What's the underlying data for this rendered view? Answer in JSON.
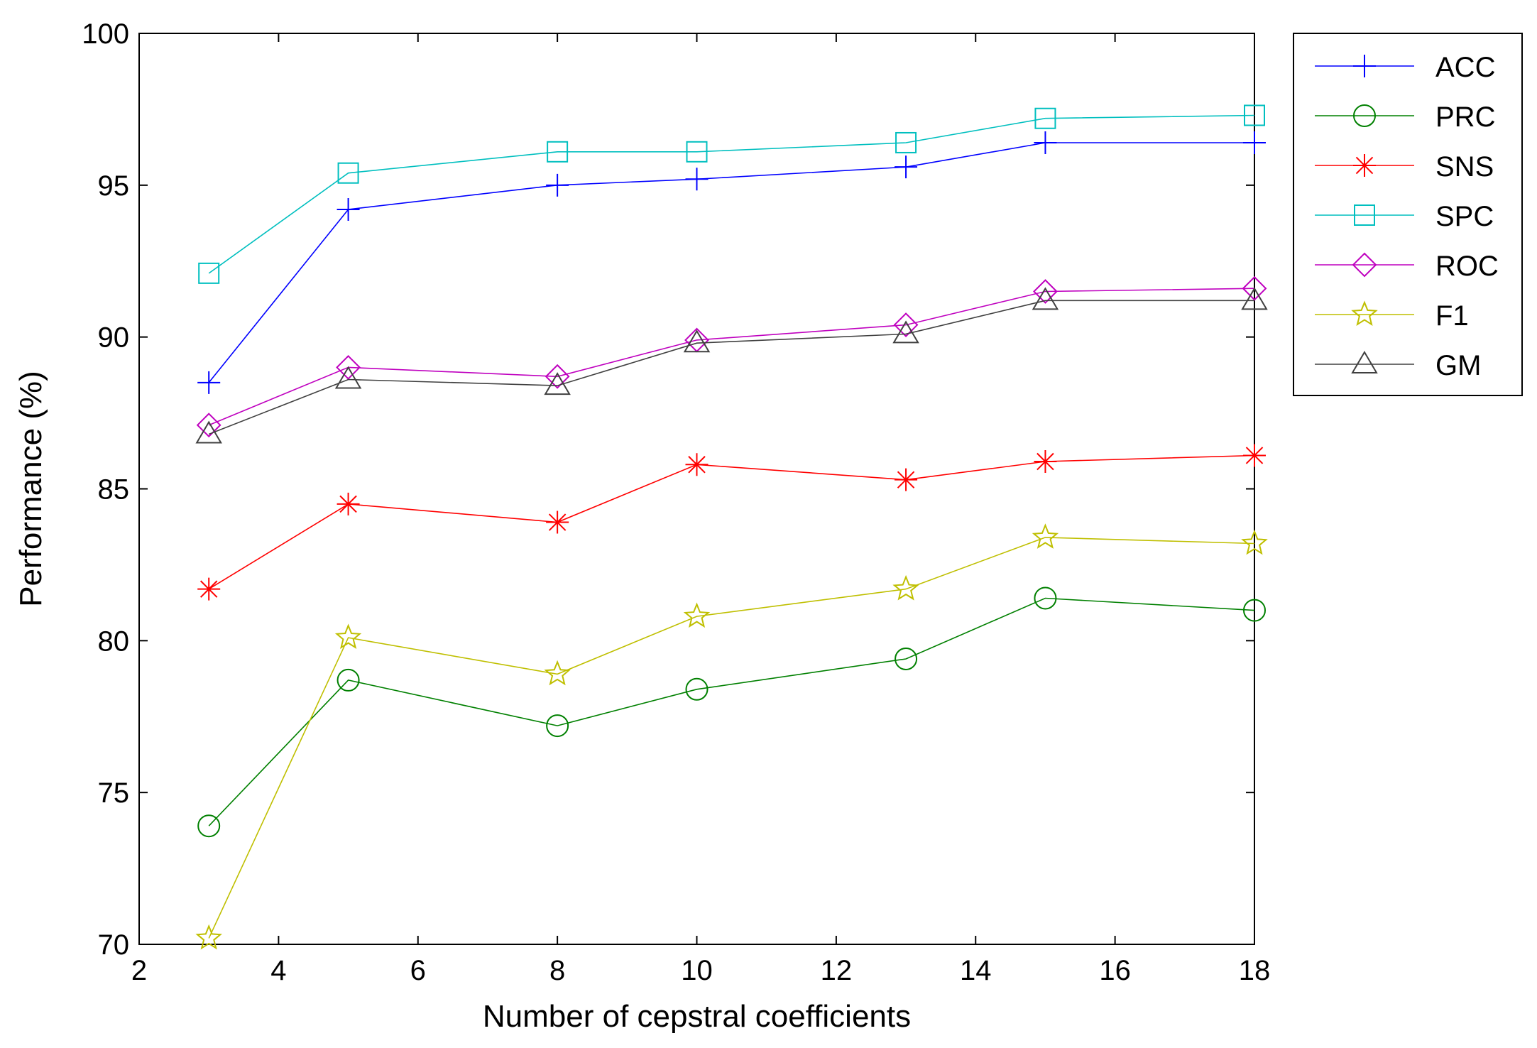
{
  "chart_data": {
    "type": "line",
    "title": "",
    "xlabel": "Number of cepstral coefficients",
    "ylabel": "Performance (%)",
    "xlim": [
      2,
      18
    ],
    "ylim": [
      70,
      100
    ],
    "xticks": [
      2,
      4,
      6,
      8,
      10,
      12,
      14,
      16,
      18
    ],
    "yticks": [
      70,
      75,
      80,
      85,
      90,
      95,
      100
    ],
    "x": [
      3,
      5,
      8,
      10,
      13,
      15,
      18
    ],
    "grid": false,
    "legend_position": "outside-top-right",
    "series": [
      {
        "name": "ACC",
        "color": "#0000ff",
        "marker": "plus",
        "values": [
          88.5,
          94.2,
          95.0,
          95.2,
          95.6,
          96.4,
          96.4
        ]
      },
      {
        "name": "PRC",
        "color": "#008000",
        "marker": "circle",
        "values": [
          73.9,
          78.7,
          77.2,
          78.4,
          79.4,
          81.4,
          81.0
        ]
      },
      {
        "name": "SNS",
        "color": "#ff0000",
        "marker": "asterisk",
        "values": [
          81.7,
          84.5,
          83.9,
          85.8,
          85.3,
          85.9,
          86.1
        ]
      },
      {
        "name": "SPC",
        "color": "#00bfbf",
        "marker": "square",
        "values": [
          92.1,
          95.4,
          96.1,
          96.1,
          96.4,
          97.2,
          97.3
        ]
      },
      {
        "name": "ROC",
        "color": "#bf00bf",
        "marker": "diamond",
        "values": [
          87.1,
          89.0,
          88.7,
          89.9,
          90.4,
          91.5,
          91.6
        ]
      },
      {
        "name": "F1",
        "color": "#bfbf00",
        "marker": "star",
        "values": [
          70.2,
          80.1,
          78.9,
          80.8,
          81.7,
          83.4,
          83.2
        ]
      },
      {
        "name": "GM",
        "color": "#404040",
        "marker": "triangle",
        "values": [
          86.8,
          88.6,
          88.4,
          89.8,
          90.1,
          91.2,
          91.2
        ]
      }
    ]
  }
}
